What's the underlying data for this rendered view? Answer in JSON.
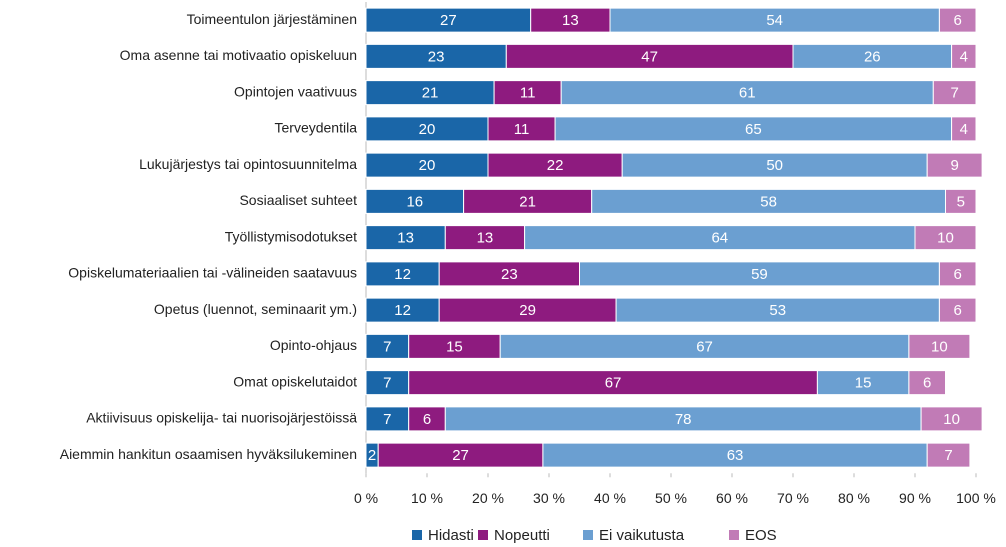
{
  "chart_data": {
    "type": "stacked-barh",
    "categories": [
      "Toimeentulon järjestäminen",
      "Oma asenne tai motivaatio opiskeluun",
      "Opintojen vaativuus",
      "Terveydentila",
      "Lukujärjestys tai opintosuunnitelma",
      "Sosiaaliset suhteet",
      "Työllistymisodotukset",
      "Opiskelumateriaalien tai -välineiden saatavuus",
      "Opetus (luennot, seminaarit ym.)",
      "Opinto-ohjaus",
      "Omat opiskelutaidot",
      "Aktiivisuus opiskelija- tai nuorisojärjestöissä",
      "Aiemmin hankitun osaamisen hyväksilukeminen"
    ],
    "series": [
      {
        "name": "Hidasti",
        "color": "#1a66a8",
        "values": [
          27,
          23,
          21,
          20,
          20,
          16,
          13,
          12,
          12,
          7,
          7,
          7,
          2
        ]
      },
      {
        "name": "Nopeutti",
        "color": "#8e1b7f",
        "values": [
          13,
          47,
          11,
          11,
          22,
          21,
          13,
          23,
          29,
          15,
          67,
          6,
          27
        ]
      },
      {
        "name": "Ei vaikutusta",
        "color": "#6b9fd1",
        "values": [
          54,
          26,
          61,
          65,
          50,
          58,
          64,
          59,
          53,
          67,
          15,
          78,
          63
        ]
      },
      {
        "name": "EOS",
        "color": "#c17bb6",
        "values": [
          6,
          4,
          7,
          4,
          9,
          5,
          10,
          6,
          6,
          10,
          6,
          10,
          7
        ]
      }
    ],
    "xlim": [
      0,
      100
    ],
    "xticks": [
      {
        "value": 0,
        "label": "0 %"
      },
      {
        "value": 10,
        "label": "10 %"
      },
      {
        "value": 20,
        "label": "20 %"
      },
      {
        "value": 30,
        "label": "30 %"
      },
      {
        "value": 40,
        "label": "40 %"
      },
      {
        "value": 50,
        "label": "50 %"
      },
      {
        "value": 60,
        "label": "60 %"
      },
      {
        "value": 70,
        "label": "70 %"
      },
      {
        "value": 80,
        "label": "80 %"
      },
      {
        "value": 90,
        "label": "90 %"
      },
      {
        "value": 100,
        "label": "100 %"
      }
    ],
    "legend": "bottom"
  }
}
